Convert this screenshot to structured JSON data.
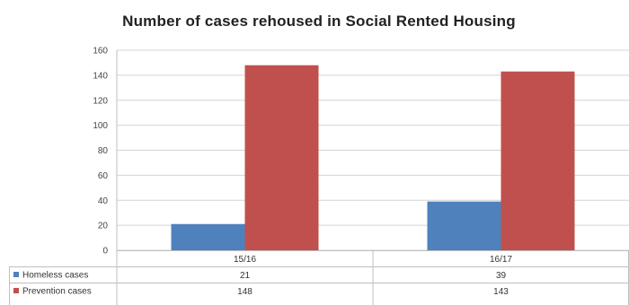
{
  "chart_data": {
    "type": "bar",
    "title": "Number of cases rehoused in Social Rented Housing",
    "categories": [
      "15/16",
      "16/17"
    ],
    "series": [
      {
        "name": "Homeless cases",
        "values": [
          21,
          39
        ],
        "color": "#4f81bd"
      },
      {
        "name": "Prevention cases",
        "values": [
          148,
          143
        ],
        "color": "#c0504d"
      }
    ],
    "ylim": [
      0,
      160
    ],
    "yticks": [
      0,
      20,
      40,
      60,
      80,
      100,
      120,
      140,
      160
    ],
    "grid": true,
    "legend": "data table below chart"
  }
}
